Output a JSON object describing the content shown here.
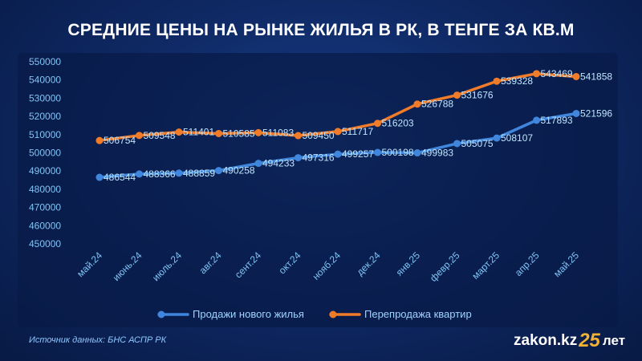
{
  "header": {
    "title": "СРЕДНИЕ ЦЕНЫ НА РЫНКЕ ЖИЛЬЯ В РК, В ТЕНГЕ ЗА КВ.М"
  },
  "footer": {
    "source": "Источник данных: БНС АСПР РК",
    "brand_domain": "zakon.kz",
    "brand_number": "25",
    "brand_suffix": "лет"
  },
  "colors": {
    "new_housing": "#3f86dc",
    "resale": "#f07c2a",
    "tick_text": "#7fc4f5",
    "value_label": "#bfe6ff"
  },
  "chart_data": {
    "type": "line",
    "title": "СРЕДНИЕ ЦЕНЫ НА РЫНКЕ ЖИЛЬЯ В РК, В ТЕНГЕ ЗА КВ.М",
    "categories": [
      "май.24",
      "июнь.24",
      "июль.24",
      "авг.24",
      "сент.24",
      "окт.24",
      "нояб.24",
      "дек.24",
      "янв.25",
      "февр.25",
      "март.25",
      "апр.25",
      "май.25"
    ],
    "yticks": [
      "450000",
      "460000",
      "470000",
      "480000",
      "490000",
      "500000",
      "510000",
      "520000",
      "530000",
      "540000",
      "550000"
    ],
    "ylim": [
      450000,
      550000
    ],
    "grid": false,
    "legend_position": "bottom",
    "series": [
      {
        "name": "Продажи нового жилья",
        "values": [
          486544,
          488366,
          488859,
          490258,
          494233,
          497316,
          499257,
          500198,
          499983,
          505075,
          508107,
          517893,
          521596
        ],
        "labels": [
          "486544",
          "488366",
          "488859",
          "490258",
          "494233",
          "497316",
          "499257",
          "500198",
          "499983",
          "505075",
          "508107",
          "517893",
          "521596"
        ]
      },
      {
        "name": "Перепродажа квартир",
        "values": [
          506754,
          509548,
          511401,
          510585,
          511083,
          509450,
          511717,
          516203,
          526788,
          531676,
          539328,
          543469,
          541858
        ],
        "labels": [
          "506754",
          "509548",
          "511401",
          "510585",
          "511083",
          "509450",
          "511717",
          "516203",
          "526788",
          "531676",
          "539328",
          "543469",
          "541858"
        ]
      }
    ]
  }
}
